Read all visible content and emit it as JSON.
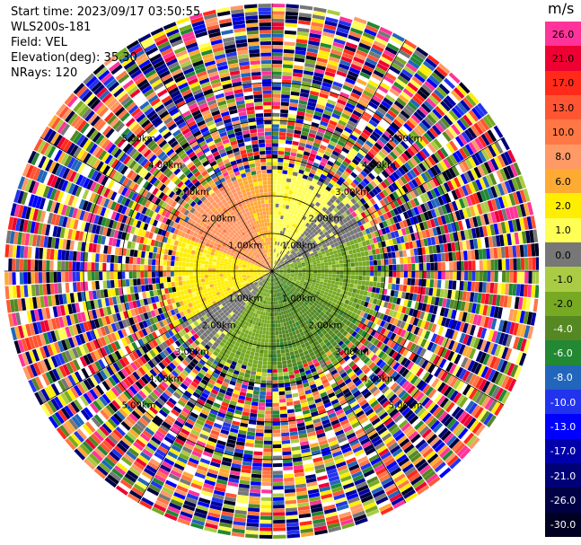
{
  "header": {
    "start_time": "Start time: 2023/09/17 03:50:55",
    "instrument": "WLS200s-181",
    "field": "Field: VEL",
    "elevation": "Elevation(deg): 35.30",
    "nrays": "NRays: 120"
  },
  "colorbar": {
    "unit": "m/s",
    "entries": [
      {
        "label": "26.0",
        "color": "#ff3399"
      },
      {
        "label": "21.0",
        "color": "#ee0033"
      },
      {
        "label": "17.0",
        "color": "#ff2a1a"
      },
      {
        "label": "13.0",
        "color": "#ff5533"
      },
      {
        "label": "10.0",
        "color": "#ff7744"
      },
      {
        "label": "8.0",
        "color": "#ff9966"
      },
      {
        "label": "6.0",
        "color": "#ffaa33"
      },
      {
        "label": "2.0",
        "color": "#ffee00"
      },
      {
        "label": "1.0",
        "color": "#ffff55"
      },
      {
        "label": "0.0",
        "color": "#777777"
      },
      {
        "label": "-1.0",
        "color": "#aacc44"
      },
      {
        "label": "-2.0",
        "color": "#77aa22"
      },
      {
        "label": "-4.0",
        "color": "#558822"
      },
      {
        "label": "-6.0",
        "color": "#228833"
      },
      {
        "label": "-8.0",
        "color": "#2266bb"
      },
      {
        "label": "-10.0",
        "color": "#2233ee"
      },
      {
        "label": "-13.0",
        "color": "#0000ff"
      },
      {
        "label": "-17.0",
        "color": "#0000aa"
      },
      {
        "label": "-21.0",
        "color": "#000077"
      },
      {
        "label": "-26.0",
        "color": "#000044"
      },
      {
        "label": "-30.0",
        "color": "#000022"
      }
    ]
  },
  "chart_data": {
    "type": "heatmap",
    "projection": "polar-ppi",
    "unit": "m/s",
    "nrays": 120,
    "range_ring_labels": [
      "1.00km",
      "2.00km",
      "3.00km",
      "4.00km",
      "5.00km"
    ],
    "range_rings_km": [
      1,
      2,
      3,
      4,
      5
    ],
    "max_range_km": 7.1,
    "azimuth_sectors": [
      {
        "from_deg": 0,
        "to_deg": 40,
        "dominant": "1.0"
      },
      {
        "from_deg": 40,
        "to_deg": 70,
        "dominant": "0.0"
      },
      {
        "from_deg": 70,
        "to_deg": 120,
        "dominant": "-2.0"
      },
      {
        "from_deg": 120,
        "to_deg": 180,
        "dominant": "-4.0"
      },
      {
        "from_deg": 180,
        "to_deg": 215,
        "dominant": "-2.0"
      },
      {
        "from_deg": 215,
        "to_deg": 240,
        "dominant": "0.0"
      },
      {
        "from_deg": 240,
        "to_deg": 290,
        "dominant": "2.0"
      },
      {
        "from_deg": 290,
        "to_deg": 340,
        "dominant": "8.0"
      },
      {
        "from_deg": 340,
        "to_deg": 360,
        "dominant": "6.0"
      }
    ],
    "clean_range_km": 2.6,
    "noise_beyond_km": 3.0,
    "grid": true
  }
}
